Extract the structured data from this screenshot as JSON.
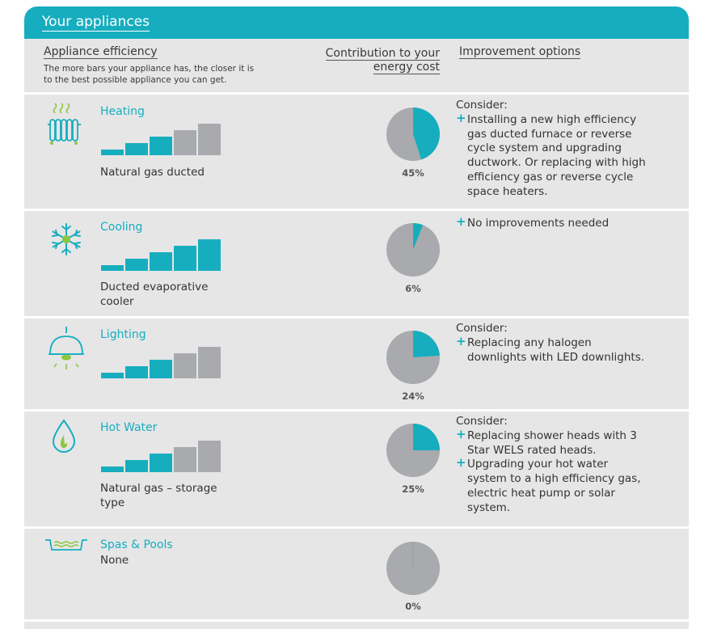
{
  "banner": {
    "title": "Your appliances"
  },
  "headers": {
    "efficiency": "Appliance efficiency",
    "efficiency_note": "The more bars your appliance has, the closer it is to the best possible appliance you can get.",
    "contribution_line1": "Contribution to your",
    "contribution_line2": "energy cost",
    "improvement": "Improvement options"
  },
  "colors": {
    "accent": "#16aebf",
    "bar_off": "#a9aaad",
    "pie_base": "#a9aaad",
    "panel": "#e6e6e7"
  },
  "appliances": [
    {
      "icon": "radiator-icon",
      "name": "Heating",
      "type": "Natural gas ducted",
      "bars_filled": 3,
      "bars_total": 5,
      "contribution": 45,
      "contribution_label": "45%",
      "improvement": {
        "heading": "Consider:",
        "options": [
          "Installing a new high efficiency gas ducted furnace or reverse cycle system and upgrading ductwork. Or replacing with high efficiency gas or reverse cycle space heaters."
        ]
      }
    },
    {
      "icon": "snowflake-icon",
      "name": "Cooling",
      "type": "Ducted evaporative cooler",
      "bars_filled": 5,
      "bars_total": 5,
      "contribution": 6,
      "contribution_label": "6%",
      "improvement": {
        "heading": "",
        "options": [
          "No improvements needed"
        ]
      }
    },
    {
      "icon": "ceiling-lamp-icon",
      "name": "Lighting",
      "type": "",
      "bars_filled": 3,
      "bars_total": 5,
      "contribution": 24,
      "contribution_label": "24%",
      "improvement": {
        "heading": "Consider:",
        "options": [
          "Replacing any halogen downlights with LED downlights."
        ]
      }
    },
    {
      "icon": "flame-drop-icon",
      "name": "Hot Water",
      "type": "Natural gas – storage type",
      "bars_filled": 3,
      "bars_total": 5,
      "contribution": 25,
      "contribution_label": "25%",
      "improvement": {
        "heading": "Consider:",
        "options": [
          "Replacing shower heads with 3 Star WELS rated heads.",
          "Upgrading your hot water system to a high efficiency gas, electric heat pump or solar system."
        ]
      }
    },
    {
      "icon": "pool-icon",
      "name": "Spas & Pools",
      "type": "None",
      "bars_filled": 0,
      "bars_total": 0,
      "contribution": 0,
      "contribution_label": "0%",
      "improvement": {
        "heading": "",
        "options": []
      }
    }
  ]
}
